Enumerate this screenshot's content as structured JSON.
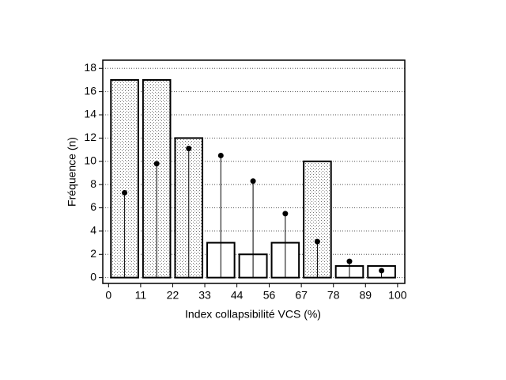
{
  "chart_data": {
    "type": "histogram",
    "xlabel": "Index collapsibilité VCS (%)",
    "ylabel": "Fréquence (n)",
    "bins": [
      0,
      11.1,
      22.2,
      33.3,
      44.4,
      55.6,
      66.7,
      77.8,
      88.9,
      100
    ],
    "values": [
      17,
      17,
      12,
      3,
      2,
      3,
      10,
      1,
      1
    ],
    "bar_styles": [
      "stipple",
      "stipple",
      "stipple",
      "plain",
      "plain",
      "plain",
      "stipple",
      "plain",
      "plain"
    ],
    "points": {
      "values": [
        7.3,
        9.8,
        11.1,
        10.5,
        8.3,
        5.5,
        3.1,
        1.4,
        0.6
      ],
      "color": "#000000"
    },
    "xlim": [
      -2,
      102.5
    ],
    "ylim": [
      -0.5,
      18.7
    ],
    "xticks": [
      0,
      {
        "value": 11.1,
        "label": "11"
      },
      {
        "value": 22.2,
        "label": "22"
      },
      {
        "value": 33.3,
        "label": "33"
      },
      {
        "value": 44.4,
        "label": "44"
      },
      {
        "value": 55.6,
        "label": "56"
      },
      {
        "value": 66.7,
        "label": "67"
      },
      {
        "value": 77.8,
        "label": "78"
      },
      {
        "value": 88.9,
        "label": "89"
      },
      100
    ],
    "yticks": [
      0,
      2,
      4,
      6,
      8,
      10,
      12,
      14,
      16,
      18
    ],
    "grid": true
  }
}
